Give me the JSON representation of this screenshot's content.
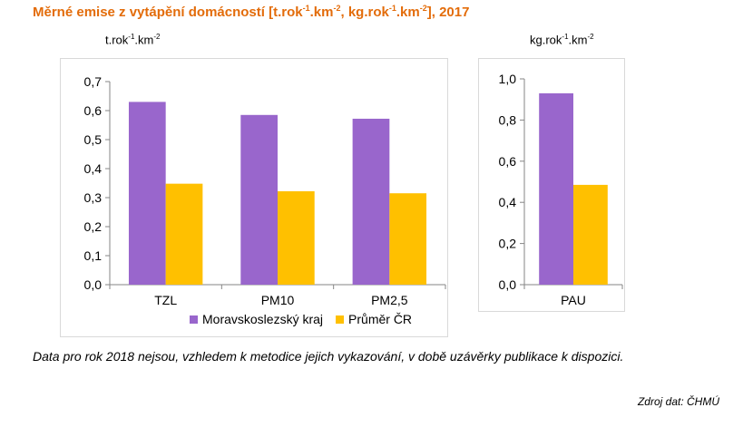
{
  "header": {
    "title_main": "Měrné emise z vytápění domácností [t.rok",
    "title_sup1": "-1",
    "title_mid1": ".km",
    "title_sup2": "-2",
    "title_mid2": ", kg.rok",
    "title_sup3": "-1",
    "title_mid3": ".km",
    "title_sup4": "-2",
    "title_end": "], 2017"
  },
  "colors": {
    "series1": "#9966CC",
    "series2": "#FFC000",
    "title": "#E36C0A"
  },
  "chart_data": [
    {
      "type": "bar",
      "ylabel_base": "t.rok",
      "ylabel_sup1": "-1",
      "ylabel_mid": ".km",
      "ylabel_sup2": "-2",
      "categories": [
        "TZL",
        "PM10",
        "PM2,5"
      ],
      "series": [
        {
          "name": "Moravskoslezský kraj",
          "values": [
            0.63,
            0.585,
            0.572
          ]
        },
        {
          "name": "Průměr ČR",
          "values": [
            0.348,
            0.322,
            0.315
          ]
        }
      ],
      "ylim": [
        0,
        0.7
      ],
      "yticks": [
        "0,0",
        "0,1",
        "0,2",
        "0,3",
        "0,4",
        "0,5",
        "0,6",
        "0,7"
      ],
      "legend": "bottom",
      "grid": false
    },
    {
      "type": "bar",
      "ylabel_base": "kg.rok",
      "ylabel_sup1": "-1",
      "ylabel_mid": ".km",
      "ylabel_sup2": "-2",
      "categories": [
        "PAU"
      ],
      "series": [
        {
          "name": "Moravskoslezský kraj",
          "values": [
            0.93
          ]
        },
        {
          "name": "Průměr ČR",
          "values": [
            0.485
          ]
        }
      ],
      "ylim": [
        0,
        1.0
      ],
      "yticks": [
        "0,0",
        "0,2",
        "0,4",
        "0,6",
        "0,8",
        "1,0"
      ],
      "grid": false
    }
  ],
  "note": "Data pro rok 2018 nejsou, vzhledem k metodice jejich vykazování, v době uzávěrky publikace k dispozici.",
  "source": "Zdroj dat: ČHMÚ"
}
